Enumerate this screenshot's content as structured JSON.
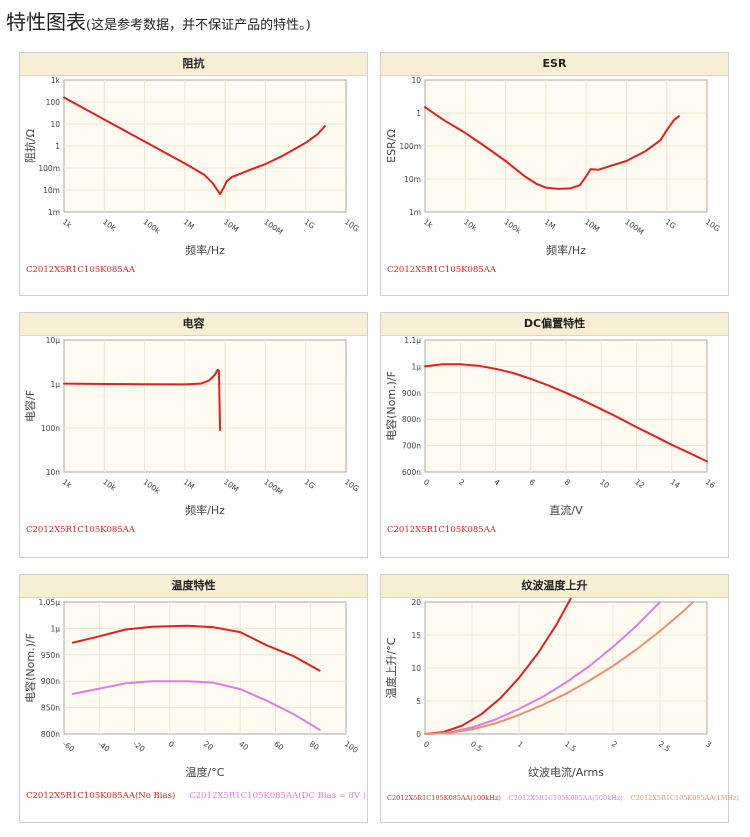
{
  "heading": {
    "title": "特性图表",
    "note": "(这是参考数据，并不保证产品的特性。)"
  },
  "colors": {
    "red": "#e02020",
    "pink": "#e07be0",
    "salmon": "#e89070"
  },
  "chart_data": [
    {
      "key": "impedance",
      "type": "line",
      "title": "阻抗",
      "xlabel": "频率/Hz",
      "ylabel": "阻抗/Ω",
      "x_scale": "log",
      "y_scale": "log",
      "xlim": [
        1000,
        10000000000
      ],
      "ylim": [
        0.001,
        1000
      ],
      "x_ticks": [
        {
          "v": 1000,
          "label": "1k"
        },
        {
          "v": 10000,
          "label": "10k"
        },
        {
          "v": 100000,
          "label": "100k"
        },
        {
          "v": 1000000,
          "label": "1M"
        },
        {
          "v": 10000000,
          "label": "10M"
        },
        {
          "v": 100000000,
          "label": "100M"
        },
        {
          "v": 1000000000,
          "label": "1G"
        },
        {
          "v": 10000000000,
          "label": "10G"
        }
      ],
      "y_ticks": [
        {
          "v": 0.001,
          "label": "1m"
        },
        {
          "v": 0.01,
          "label": "10m"
        },
        {
          "v": 0.1,
          "label": "100m"
        },
        {
          "v": 1,
          "label": "1"
        },
        {
          "v": 10,
          "label": "10"
        },
        {
          "v": 100,
          "label": "100"
        },
        {
          "v": 1000,
          "label": "1k"
        }
      ],
      "series": [
        {
          "color": "#e02020",
          "points": [
            [
              1000,
              160
            ],
            [
              10000,
              16
            ],
            [
              100000,
              1.6
            ],
            [
              1000000,
              0.16
            ],
            [
              3000000,
              0.05
            ],
            [
              5000000,
              0.02
            ],
            [
              6000000,
              0.012
            ],
            [
              7500000,
              0.0065
            ],
            [
              9000000,
              0.012
            ],
            [
              11000000,
              0.025
            ],
            [
              15000000,
              0.04
            ],
            [
              20000000,
              0.048
            ],
            [
              40000000,
              0.08
            ],
            [
              100000000,
              0.15
            ],
            [
              300000000,
              0.4
            ],
            [
              1000000000,
              1.4
            ],
            [
              2000000000,
              3.5
            ],
            [
              3000000000,
              8
            ]
          ]
        }
      ],
      "legend": [
        {
          "text": "C2012X5R1C105K085AA",
          "color": "#e02020"
        }
      ]
    },
    {
      "key": "esr",
      "type": "line",
      "title": "ESR",
      "xlabel": "频率/Hz",
      "ylabel": "ESR/Ω",
      "x_scale": "log",
      "y_scale": "log",
      "xlim": [
        1000,
        10000000000
      ],
      "ylim": [
        0.001,
        10
      ],
      "x_ticks": [
        {
          "v": 1000,
          "label": "1k"
        },
        {
          "v": 10000,
          "label": "10k"
        },
        {
          "v": 100000,
          "label": "100k"
        },
        {
          "v": 1000000,
          "label": "1M"
        },
        {
          "v": 10000000,
          "label": "10M"
        },
        {
          "v": 100000000,
          "label": "100M"
        },
        {
          "v": 1000000000,
          "label": "1G"
        },
        {
          "v": 10000000000,
          "label": "10G"
        }
      ],
      "y_ticks": [
        {
          "v": 0.001,
          "label": "1m"
        },
        {
          "v": 0.01,
          "label": "10m"
        },
        {
          "v": 0.1,
          "label": "100m"
        },
        {
          "v": 1,
          "label": "1"
        },
        {
          "v": 10,
          "label": "10"
        }
      ],
      "series": [
        {
          "color": "#e02020",
          "points": [
            [
              1000,
              1.5
            ],
            [
              3000,
              0.6
            ],
            [
              10000,
              0.25
            ],
            [
              30000,
              0.1
            ],
            [
              100000,
              0.035
            ],
            [
              300000,
              0.012
            ],
            [
              600000,
              0.007
            ],
            [
              1000000,
              0.0055
            ],
            [
              2000000,
              0.005
            ],
            [
              4000000,
              0.0052
            ],
            [
              7000000,
              0.0065
            ],
            [
              10000000,
              0.012
            ],
            [
              13000000,
              0.02
            ],
            [
              20000000,
              0.019
            ],
            [
              40000000,
              0.025
            ],
            [
              100000000,
              0.035
            ],
            [
              300000000,
              0.07
            ],
            [
              700000000,
              0.15
            ],
            [
              1000000000,
              0.3
            ],
            [
              1500000000,
              0.6
            ],
            [
              2000000000,
              0.8
            ]
          ]
        }
      ],
      "legend": [
        {
          "text": "C2012X5R1C105K085AA",
          "color": "#e02020"
        }
      ]
    },
    {
      "key": "capacitance",
      "type": "line",
      "title": "电容",
      "xlabel": "频率/Hz",
      "ylabel": "电容/F",
      "x_scale": "log",
      "y_scale": "log",
      "xlim": [
        1000,
        10000000000
      ],
      "ylim": [
        1e-08,
        1e-05
      ],
      "x_ticks": [
        {
          "v": 1000,
          "label": "1k"
        },
        {
          "v": 10000,
          "label": "10k"
        },
        {
          "v": 100000,
          "label": "100k"
        },
        {
          "v": 1000000,
          "label": "1M"
        },
        {
          "v": 10000000,
          "label": "10M"
        },
        {
          "v": 100000000,
          "label": "100M"
        },
        {
          "v": 1000000000,
          "label": "1G"
        },
        {
          "v": 10000000000,
          "label": "10G"
        }
      ],
      "y_ticks": [
        {
          "v": 1e-08,
          "label": "10n"
        },
        {
          "v": 1e-07,
          "label": "100n"
        },
        {
          "v": 1e-06,
          "label": "1μ"
        },
        {
          "v": 1e-05,
          "label": "10μ"
        }
      ],
      "series": [
        {
          "color": "#e02020",
          "points": [
            [
              1000,
              1.02e-06
            ],
            [
              10000,
              1e-06
            ],
            [
              100000,
              9.9e-07
            ],
            [
              1000000,
              9.8e-07
            ],
            [
              2500000,
              1.02e-06
            ],
            [
              4000000,
              1.2e-06
            ],
            [
              5500000,
              1.6e-06
            ],
            [
              6500000,
              2.1e-06
            ],
            [
              7000000,
              2e-06
            ],
            [
              7500000,
              9e-08
            ]
          ]
        }
      ],
      "legend": [
        {
          "text": "C2012X5R1C105K085AA",
          "color": "#e02020"
        }
      ]
    },
    {
      "key": "dc_bias",
      "type": "line",
      "title": "DC偏置特性",
      "xlabel": "直流/V",
      "ylabel": "电容(Nom.)/F",
      "x_scale": "linear",
      "y_scale": "linear",
      "xlim": [
        0,
        16
      ],
      "ylim": [
        6e-07,
        1.1e-06
      ],
      "x_ticks": [
        {
          "v": 0,
          "label": "0"
        },
        {
          "v": 2,
          "label": "2"
        },
        {
          "v": 4,
          "label": "4"
        },
        {
          "v": 6,
          "label": "6"
        },
        {
          "v": 8,
          "label": "8"
        },
        {
          "v": 10,
          "label": "10"
        },
        {
          "v": 12,
          "label": "12"
        },
        {
          "v": 14,
          "label": "14"
        },
        {
          "v": 16,
          "label": "16"
        }
      ],
      "y_ticks": [
        {
          "v": 6e-07,
          "label": "600n"
        },
        {
          "v": 7e-07,
          "label": "700n"
        },
        {
          "v": 8e-07,
          "label": "800n"
        },
        {
          "v": 9e-07,
          "label": "900n"
        },
        {
          "v": 1e-06,
          "label": "1μ"
        },
        {
          "v": 1.1e-06,
          "label": "1.1μ"
        }
      ],
      "series": [
        {
          "color": "#e02020",
          "points": [
            [
              0,
              1e-06
            ],
            [
              1,
              1.0085e-06
            ],
            [
              2,
              1.008e-06
            ],
            [
              3,
              1.0025e-06
            ],
            [
              4,
              9.91e-07
            ],
            [
              5,
              9.75e-07
            ],
            [
              6,
              9.53e-07
            ],
            [
              7,
              9.28e-07
            ],
            [
              8,
              9e-07
            ],
            [
              9,
              8.7e-07
            ],
            [
              10,
              8.38e-07
            ],
            [
              11,
              8.05e-07
            ],
            [
              12,
              7.7e-07
            ],
            [
              13,
              7.37e-07
            ],
            [
              14,
              7.03e-07
            ],
            [
              15,
              6.72e-07
            ],
            [
              16,
              6.4e-07
            ]
          ]
        }
      ],
      "legend": [
        {
          "text": "C2012X5R1C105K085AA",
          "color": "#e02020"
        }
      ]
    },
    {
      "key": "temperature",
      "type": "line",
      "title": "温度特性",
      "xlabel": "温度/°C",
      "ylabel": "电容(Nom.)/F",
      "x_scale": "linear",
      "y_scale": "linear",
      "xlim": [
        -60,
        100
      ],
      "ylim": [
        8e-07,
        1.05e-06
      ],
      "x_ticks": [
        {
          "v": -60,
          "label": "-60"
        },
        {
          "v": -40,
          "label": "-40"
        },
        {
          "v": -20,
          "label": "-20"
        },
        {
          "v": 0,
          "label": "0"
        },
        {
          "v": 20,
          "label": "20"
        },
        {
          "v": 40,
          "label": "40"
        },
        {
          "v": 60,
          "label": "60"
        },
        {
          "v": 80,
          "label": "80"
        },
        {
          "v": 100,
          "label": "100"
        }
      ],
      "y_ticks": [
        {
          "v": 8e-07,
          "label": "800n"
        },
        {
          "v": 8.5e-07,
          "label": "850n"
        },
        {
          "v": 9e-07,
          "label": "900n"
        },
        {
          "v": 9.5e-07,
          "label": "950n"
        },
        {
          "v": 1e-06,
          "label": "1μ"
        },
        {
          "v": 1.05e-06,
          "label": "1.05μ"
        }
      ],
      "series": [
        {
          "name": "C2012X5R1C105K085AA(No Bias)",
          "color": "#e02020",
          "points": [
            [
              -55,
              9.73e-07
            ],
            [
              -40,
              9.85e-07
            ],
            [
              -25,
              9.98e-07
            ],
            [
              -10,
              1.003e-06
            ],
            [
              0,
              1.004e-06
            ],
            [
              10,
              1.005e-06
            ],
            [
              25,
              1.002e-06
            ],
            [
              40,
              9.93e-07
            ],
            [
              55,
              9.68e-07
            ],
            [
              70,
              9.48e-07
            ],
            [
              85,
              9.2e-07
            ]
          ]
        },
        {
          "name": "C2012X5R1C105K085AA(DC Bias = 8V )",
          "color": "#e07be0",
          "points": [
            [
              -55,
              8.76e-07
            ],
            [
              -40,
              8.86e-07
            ],
            [
              -25,
              8.96e-07
            ],
            [
              -10,
              9e-07
            ],
            [
              0,
              9e-07
            ],
            [
              10,
              9e-07
            ],
            [
              25,
              8.97e-07
            ],
            [
              40,
              8.85e-07
            ],
            [
              55,
              8.63e-07
            ],
            [
              70,
              8.38e-07
            ],
            [
              85,
              8.08e-07
            ]
          ]
        }
      ],
      "legend": [
        {
          "text": "C2012X5R1C105K085AA(No Bias)",
          "color": "#e02020"
        },
        {
          "text": "C2012X5R1C105K085AA(DC Bias = 8V )",
          "color": "#e07be0"
        }
      ]
    },
    {
      "key": "ripple",
      "type": "line",
      "title": "纹波温度上升",
      "xlabel": "纹波电流/Arms",
      "ylabel": "温度上升/°C",
      "x_scale": "linear",
      "y_scale": "linear",
      "xlim": [
        0,
        3
      ],
      "ylim": [
        0,
        20
      ],
      "x_ticks": [
        {
          "v": 0,
          "label": "0"
        },
        {
          "v": 0.5,
          "label": "0.5"
        },
        {
          "v": 1,
          "label": "1"
        },
        {
          "v": 1.5,
          "label": "1.5"
        },
        {
          "v": 2,
          "label": "2"
        },
        {
          "v": 2.5,
          "label": "2.5"
        },
        {
          "v": 3,
          "label": "3"
        }
      ],
      "y_ticks": [
        {
          "v": 0,
          "label": "0"
        },
        {
          "v": 5,
          "label": "5"
        },
        {
          "v": 10,
          "label": "10"
        },
        {
          "v": 15,
          "label": "15"
        },
        {
          "v": 20,
          "label": "20"
        }
      ],
      "series": [
        {
          "name": "C2012X5R1C105K085AA(100kHz)",
          "color": "#e02020",
          "points": [
            [
              0,
              0
            ],
            [
              0.2,
              0.3
            ],
            [
              0.4,
              1.3
            ],
            [
              0.6,
              3
            ],
            [
              0.8,
              5.4
            ],
            [
              1,
              8.5
            ],
            [
              1.2,
              12.2
            ],
            [
              1.4,
              16.6
            ],
            [
              1.55,
              20.5
            ]
          ]
        },
        {
          "name": "C2012X5R1C105K085AA(500kHz)",
          "color": "#e07be0",
          "points": [
            [
              0,
              0
            ],
            [
              0.25,
              0.2
            ],
            [
              0.5,
              1
            ],
            [
              0.75,
              2.2
            ],
            [
              1,
              3.8
            ],
            [
              1.25,
              5.6
            ],
            [
              1.5,
              7.8
            ],
            [
              1.75,
              10.3
            ],
            [
              2,
              13.2
            ],
            [
              2.25,
              16.4
            ],
            [
              2.5,
              20
            ]
          ]
        },
        {
          "name": "C2012X5R1C105K085AA(1MHz)",
          "color": "#e89070",
          "points": [
            [
              0,
              0
            ],
            [
              0.25,
              0.15
            ],
            [
              0.5,
              0.7
            ],
            [
              0.75,
              1.6
            ],
            [
              1,
              2.9
            ],
            [
              1.25,
              4.4
            ],
            [
              1.5,
              6.1
            ],
            [
              1.75,
              8.1
            ],
            [
              2,
              10.3
            ],
            [
              2.25,
              12.8
            ],
            [
              2.5,
              15.6
            ],
            [
              2.75,
              18.6
            ],
            [
              2.85,
              20
            ]
          ]
        }
      ],
      "legend": [
        {
          "text": "C2012X5R1C105K085AA(100kHz)",
          "color": "#e02020"
        },
        {
          "text": "C2012X5R1C105K085AA(500kHz)",
          "color": "#e07be0"
        },
        {
          "text": "C2012X5R1C105K085AA(1MHz)",
          "color": "#e89070"
        }
      ]
    }
  ]
}
